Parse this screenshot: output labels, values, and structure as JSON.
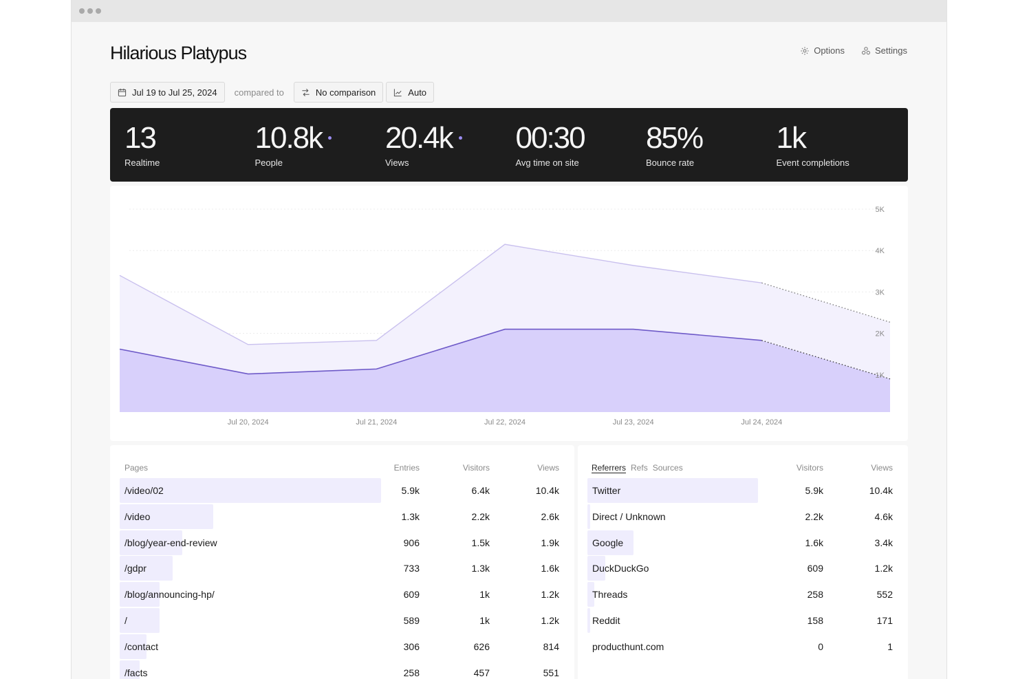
{
  "header": {
    "title": "Hilarious Platypus",
    "options_label": "Options",
    "settings_label": "Settings"
  },
  "filters": {
    "date_range": "Jul 19 to Jul 25, 2024",
    "compared_to": "compared to",
    "comparison": "No comparison",
    "interval": "Auto"
  },
  "stats": [
    {
      "value": "13",
      "label": "Realtime",
      "dot": false
    },
    {
      "value": "10.8k",
      "label": "People",
      "dot": true
    },
    {
      "value": "20.4k",
      "label": "Views",
      "dot": true
    },
    {
      "value": "00:30",
      "label": "Avg time on site",
      "dot": false
    },
    {
      "value": "85%",
      "label": "Bounce rate",
      "dot": false
    },
    {
      "value": "1k",
      "label": "Event completions",
      "dot": false
    }
  ],
  "chart_data": {
    "type": "area",
    "x": [
      "Jul 19, 2024",
      "Jul 20, 2024",
      "Jul 21, 2024",
      "Jul 22, 2024",
      "Jul 23, 2024",
      "Jul 24, 2024",
      "Jul 25, 2024"
    ],
    "x_tick_labels": [
      "Jul 20, 2024",
      "Jul 21, 2024",
      "Jul 22, 2024",
      "Jul 23, 2024",
      "Jul 24, 2024"
    ],
    "y_tick_labels": [
      "1K",
      "2K",
      "3K",
      "4K",
      "5K"
    ],
    "ylim": [
      0,
      5000
    ],
    "series": [
      {
        "values": [
          3400,
          1730,
          1830,
          4150,
          3640,
          3220,
          2270
        ],
        "color": "#c9c0ee",
        "fill": "#f3f1fd"
      },
      {
        "values": [
          1620,
          1020,
          1140,
          2100,
          2100,
          1830,
          900
        ],
        "color": "#6e5ac8",
        "fill": "#d8d0fb"
      }
    ],
    "dashed_last_segment": true,
    "grid": true
  },
  "pages": {
    "headers": {
      "name": "Pages",
      "entries": "Entries",
      "visitors": "Visitors",
      "views": "Views"
    },
    "rows": [
      {
        "name": "/video/02",
        "entries": "5.9k",
        "visitors": "6.4k",
        "views": "10.4k",
        "share": 1.0
      },
      {
        "name": "/video",
        "entries": "1.3k",
        "visitors": "2.2k",
        "views": "2.6k",
        "share": 0.357
      },
      {
        "name": "/blog/year-end-review",
        "entries": "906",
        "visitors": "1.5k",
        "views": "1.9k",
        "share": 0.239
      },
      {
        "name": "/gdpr",
        "entries": "733",
        "visitors": "1.3k",
        "views": "1.6k",
        "share": 0.202
      },
      {
        "name": "/blog/announcing-hp/",
        "entries": "609",
        "visitors": "1k",
        "views": "1.2k",
        "share": 0.152
      },
      {
        "name": "/",
        "entries": "589",
        "visitors": "1k",
        "views": "1.2k",
        "share": 0.152
      },
      {
        "name": "/contact",
        "entries": "306",
        "visitors": "626",
        "views": "814",
        "share": 0.102
      },
      {
        "name": "/facts",
        "entries": "258",
        "visitors": "457",
        "views": "551",
        "share": 0.077
      }
    ]
  },
  "referrers": {
    "tabs": [
      "Referrers",
      "Refs",
      "Sources"
    ],
    "headers": {
      "visitors": "Visitors",
      "views": "Views"
    },
    "rows": [
      {
        "name": "Twitter",
        "visitors": "5.9k",
        "views": "10.4k",
        "share": 1.0
      },
      {
        "name": "Direct / Unknown",
        "visitors": "2.2k",
        "views": "4.6k",
        "share": 0.0
      },
      {
        "name": "Google",
        "visitors": "1.6k",
        "views": "3.4k",
        "share": 0.271
      },
      {
        "name": "DuckDuckGo",
        "visitors": "609",
        "views": "1.2k",
        "share": 0.103
      },
      {
        "name": "Threads",
        "visitors": "258",
        "views": "552",
        "share": 0.04
      },
      {
        "name": "Reddit",
        "visitors": "158",
        "views": "171",
        "share": 0.02
      },
      {
        "name": "producthunt.com",
        "visitors": "0",
        "views": "1",
        "share": 0.0
      }
    ]
  }
}
